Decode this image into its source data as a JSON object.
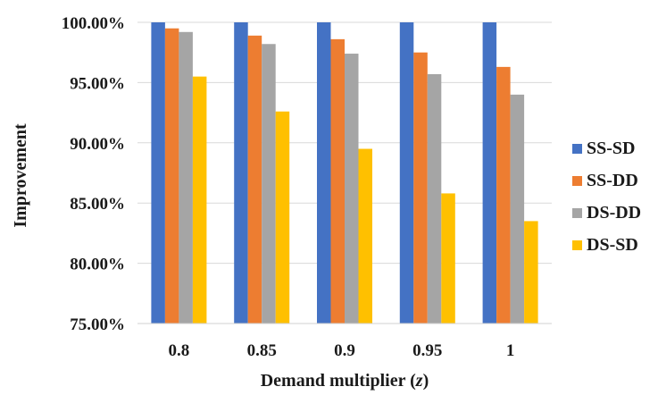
{
  "chart_data": {
    "type": "bar",
    "title": "",
    "xlabel": "Demand multiplier (",
    "xlabel_var": "z",
    "xlabel_close": ")",
    "ylabel": "Improvement",
    "ylim": [
      75,
      100
    ],
    "yticks": [
      "75.00%",
      "80.00%",
      "85.00%",
      "90.00%",
      "95.00%",
      "100.00%"
    ],
    "ytick_values": [
      75,
      80,
      85,
      90,
      95,
      100
    ],
    "categories": [
      "0.8",
      "0.85",
      "0.9",
      "0.95",
      "1"
    ],
    "grid": true,
    "legend": "right",
    "series": [
      {
        "name": "SS-SD",
        "color": "#4472C4",
        "values": [
          100,
          100,
          100,
          100,
          100
        ]
      },
      {
        "name": "SS-DD",
        "color": "#ED7D31",
        "values": [
          99.5,
          98.9,
          98.6,
          97.5,
          96.3
        ]
      },
      {
        "name": "DS-DD",
        "color": "#A5A5A5",
        "values": [
          99.2,
          98.2,
          97.4,
          95.7,
          94.0
        ]
      },
      {
        "name": "DS-SD",
        "color": "#FFC000",
        "values": [
          95.5,
          92.6,
          89.5,
          85.8,
          83.5
        ]
      }
    ]
  }
}
